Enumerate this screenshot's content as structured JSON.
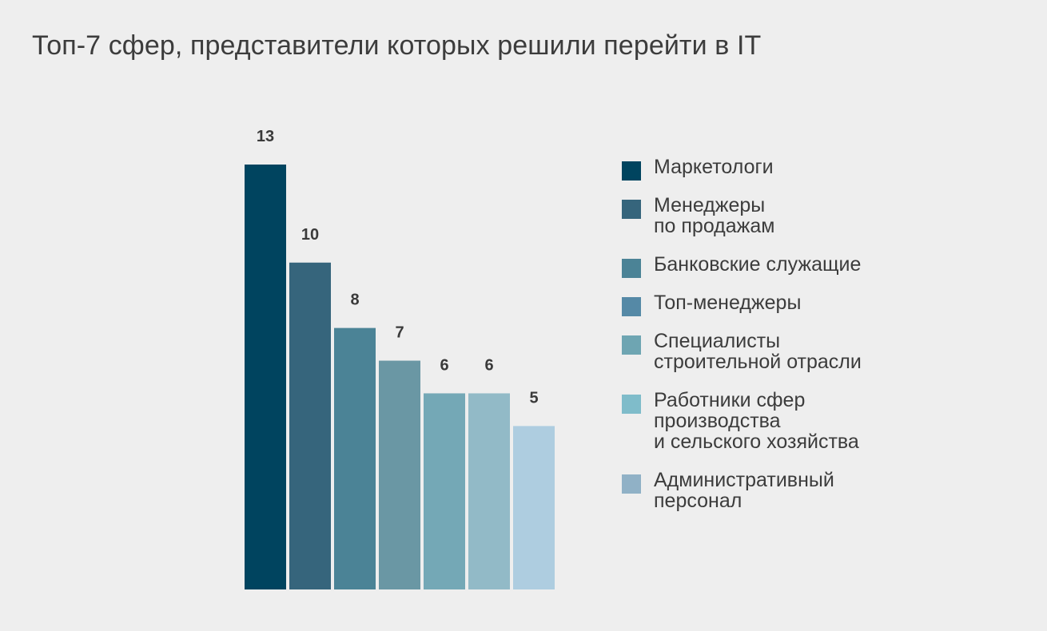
{
  "title": "Топ-7 сфер, представители которых решили перейти в IT",
  "chart_data": {
    "type": "bar",
    "title": "Топ-7 сфер, представители которых решили перейти в IT",
    "categories": [
      "Маркетологи",
      "Менеджеры\nпо продажам",
      "Банковские служащие",
      "Топ-менеджеры",
      "Специалисты\nстроительной отрасли",
      "Работники сфер\nпроизводства\nи сельского хозяйства",
      "Административный\nперсонал"
    ],
    "values": [
      13,
      10,
      8,
      7,
      6,
      6,
      5
    ],
    "bar_colors": [
      "#00445f",
      "#36657c",
      "#4b8396",
      "#6a97a4",
      "#74a8b6",
      "#92bac7",
      "#aecde0"
    ],
    "legend_colors": [
      "#00445f",
      "#36657c",
      "#4b8396",
      "#5589a6",
      "#6ea5b2",
      "#7fbcca",
      "#90b1c6"
    ],
    "legend_position": "right",
    "grid": false,
    "ylim": [
      0,
      13
    ]
  }
}
